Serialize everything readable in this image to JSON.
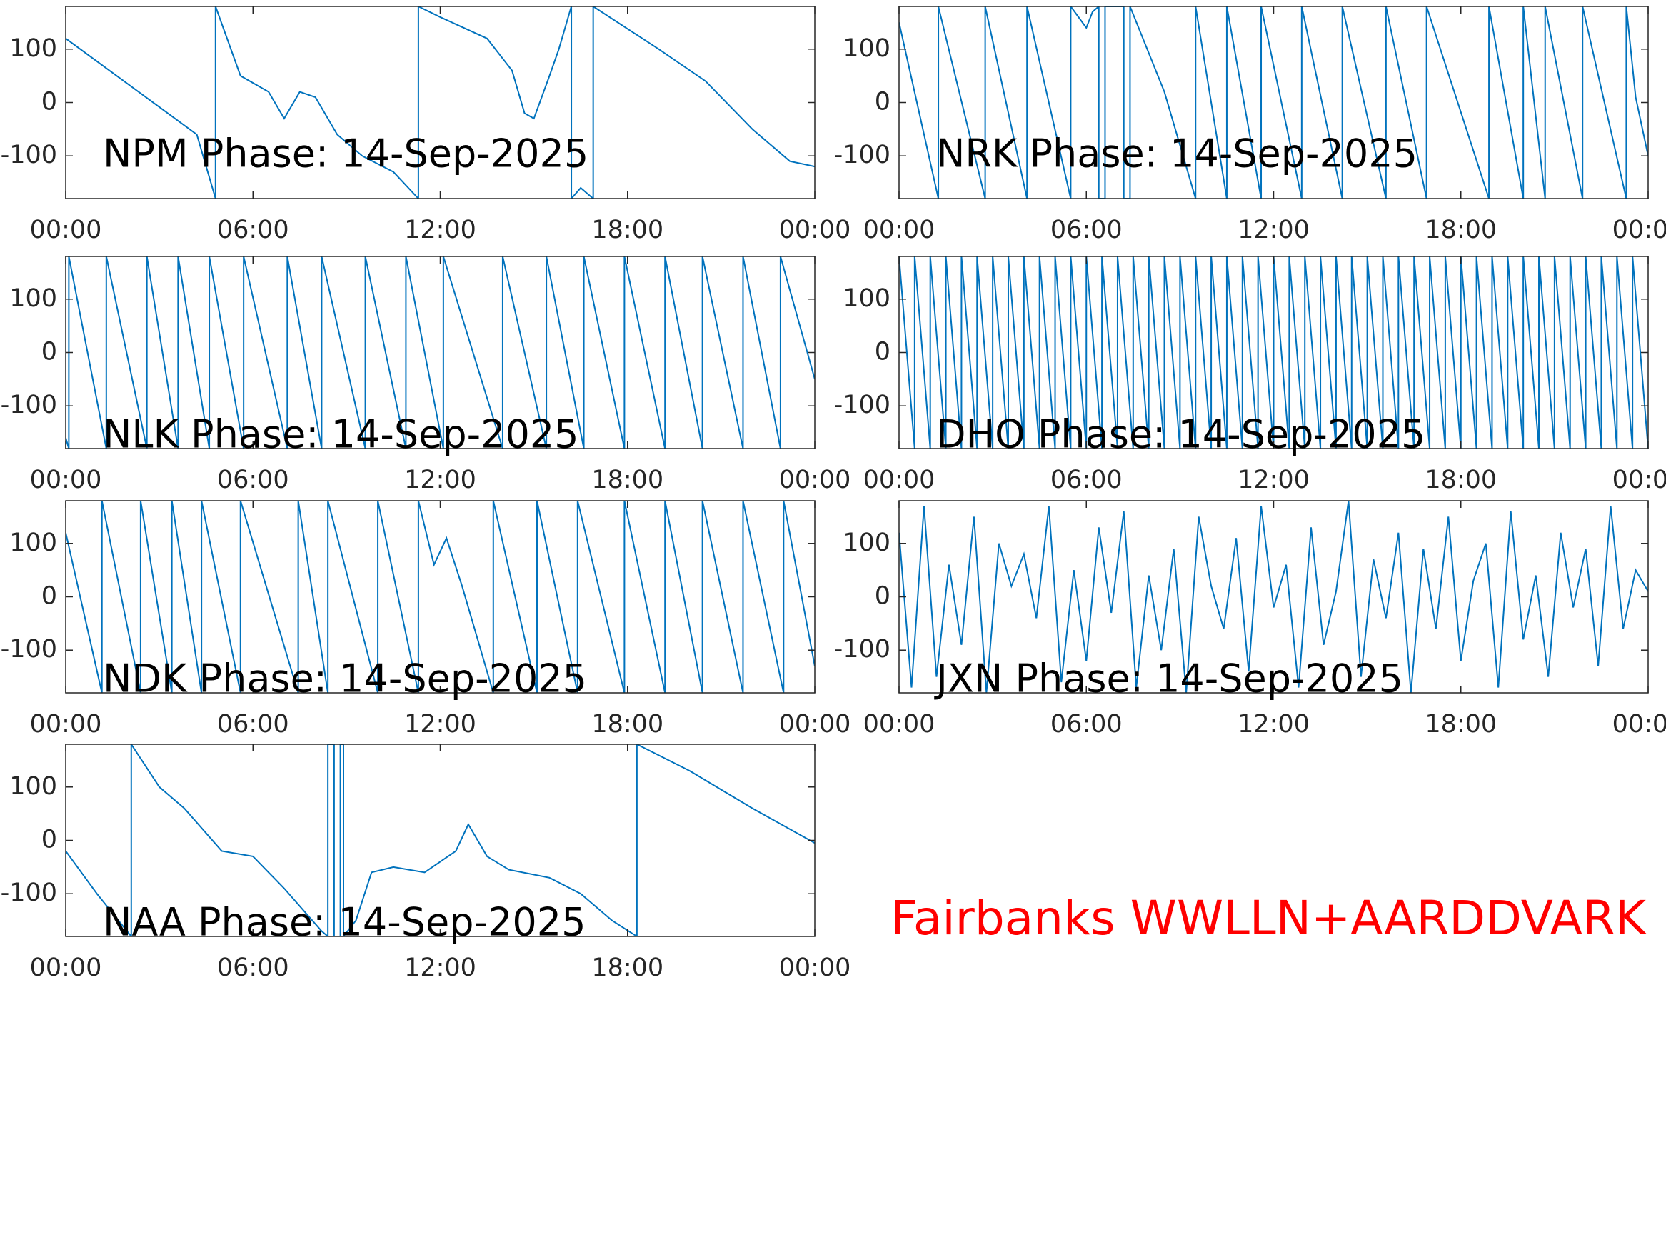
{
  "chart_data": [
    {
      "type": "line",
      "title": "NPM Phase: 14-Sep-2025",
      "color": "#0072bd",
      "x": [
        0,
        4.2,
        4.8,
        4.8,
        5.6,
        6.5,
        7.0,
        7.5,
        8.0,
        8.7,
        9.5,
        10.5,
        11.3,
        11.3,
        12,
        13.5,
        14.3,
        14.7,
        15.0,
        15.5,
        15.8,
        16.2,
        16.2,
        16.5,
        16.9,
        16.9,
        19,
        20.5,
        22,
        23.2,
        24
      ],
      "values": [
        120,
        -60,
        -180,
        180,
        50,
        20,
        -30,
        20,
        10,
        -60,
        -100,
        -130,
        -180,
        180,
        160,
        120,
        60,
        -20,
        -30,
        50,
        100,
        180,
        -180,
        -160,
        -180,
        180,
        100,
        40,
        -50,
        -110,
        -120
      ],
      "xlim": [
        0,
        24
      ],
      "xticks": [
        {
          "value": 0,
          "label": "00:00"
        },
        {
          "value": 6,
          "label": "06:00"
        },
        {
          "value": 12,
          "label": "12:00"
        },
        {
          "value": 18,
          "label": "18:00"
        },
        {
          "value": 24,
          "label": "00:00"
        }
      ],
      "ylim": [
        -180,
        180
      ],
      "yticks": [
        -100,
        0,
        100
      ]
    },
    {
      "type": "line",
      "title": "NRK Phase: 14-Sep-2025",
      "color": "#0072bd",
      "x": [
        0,
        1.26,
        1.26,
        2.76,
        2.76,
        4.1,
        4.1,
        5.5,
        5.5,
        6.0,
        6.2,
        6.4,
        6.4,
        6.6,
        6.6,
        7.2,
        7.2,
        7.4,
        7.4,
        8.5,
        9.5,
        9.5,
        10.5,
        10.5,
        11.6,
        11.6,
        12.9,
        12.9,
        14.2,
        14.2,
        15.6,
        15.6,
        16.9,
        16.9,
        18.9,
        18.9,
        20.0,
        20.0,
        20.7,
        20.7,
        21.9,
        21.9,
        23.3,
        23.3,
        23.6,
        24
      ],
      "values": [
        150,
        -180,
        180,
        -180,
        180,
        -180,
        180,
        -180,
        180,
        140,
        170,
        180,
        -180,
        -180,
        180,
        180,
        -180,
        -180,
        180,
        20,
        -180,
        180,
        -180,
        180,
        -180,
        180,
        -180,
        180,
        -180,
        180,
        -180,
        180,
        -180,
        180,
        -180,
        180,
        -180,
        180,
        -180,
        180,
        -180,
        180,
        -180,
        180,
        10,
        -100
      ],
      "xlim": [
        0,
        24
      ],
      "xticks": [
        {
          "value": 0,
          "label": "00:00"
        },
        {
          "value": 6,
          "label": "06:00"
        },
        {
          "value": 12,
          "label": "12:00"
        },
        {
          "value": 18,
          "label": "18:00"
        },
        {
          "value": 24,
          "label": "00:00"
        }
      ],
      "ylim": [
        -180,
        180
      ],
      "yticks": [
        -100,
        0,
        100
      ]
    },
    {
      "type": "line",
      "title": "NLK Phase: 14-Sep-2025",
      "color": "#0072bd",
      "x": [
        0,
        0.1,
        0.1,
        1.3,
        1.3,
        2.6,
        2.6,
        3.6,
        3.6,
        4.6,
        4.6,
        5.7,
        5.7,
        7.1,
        7.1,
        8.2,
        8.2,
        9.6,
        9.6,
        10.9,
        10.9,
        12.1,
        12.1,
        14.0,
        14.0,
        15.4,
        15.4,
        16.6,
        16.6,
        17.9,
        17.9,
        19.2,
        19.2,
        20.4,
        20.4,
        21.7,
        21.7,
        22.9,
        22.9,
        24
      ],
      "values": [
        -160,
        -180,
        180,
        -180,
        180,
        -180,
        180,
        -180,
        180,
        -180,
        180,
        -180,
        180,
        -180,
        180,
        -180,
        180,
        -180,
        180,
        -180,
        180,
        -180,
        180,
        -180,
        180,
        -180,
        180,
        -180,
        180,
        -180,
        180,
        -180,
        180,
        -180,
        180,
        -180,
        180,
        -180,
        180,
        -50
      ],
      "xlim": [
        0,
        24
      ],
      "xticks": [
        {
          "value": 0,
          "label": "00:00"
        },
        {
          "value": 6,
          "label": "06:00"
        },
        {
          "value": 12,
          "label": "12:00"
        },
        {
          "value": 18,
          "label": "18:00"
        },
        {
          "value": 24,
          "label": "00:00"
        }
      ],
      "ylim": [
        -180,
        180
      ],
      "yticks": [
        -100,
        0,
        100
      ]
    },
    {
      "type": "line",
      "title": "DHO Phase: 14-Sep-2025",
      "color": "#0072bd",
      "x": [
        0,
        0.5,
        0.5,
        1,
        1,
        1.5,
        1.5,
        2,
        2,
        2.5,
        2.5,
        3,
        3,
        3.5,
        3.5,
        4,
        4,
        4.5,
        4.5,
        5,
        5,
        5.5,
        5.5,
        6,
        6,
        6.5,
        6.5,
        7,
        7,
        7.5,
        7.5,
        8,
        8,
        8.5,
        8.5,
        9,
        9,
        9.5,
        9.5,
        10,
        10,
        10.5,
        10.5,
        11,
        11,
        11.5,
        11.5,
        12,
        12,
        12.5,
        12.5,
        13,
        13,
        13.5,
        13.5,
        14,
        14,
        14.5,
        14.5,
        15,
        15,
        15.5,
        15.5,
        16,
        16,
        16.5,
        16.5,
        17,
        17,
        17.5,
        17.5,
        18,
        18,
        18.5,
        18.5,
        19,
        19,
        19.5,
        19.5,
        20,
        20,
        20.5,
        20.5,
        21,
        21,
        21.5,
        21.5,
        22,
        22,
        22.5,
        22.5,
        23,
        23,
        23.5,
        23.5,
        24
      ],
      "values": [
        180,
        -180,
        180,
        -180,
        180,
        -180,
        180,
        -180,
        180,
        -180,
        180,
        -180,
        180,
        -180,
        180,
        -180,
        180,
        -180,
        180,
        -180,
        180,
        -180,
        180,
        -180,
        180,
        -180,
        180,
        -180,
        180,
        -180,
        180,
        -180,
        180,
        -180,
        180,
        -180,
        180,
        -180,
        180,
        -180,
        180,
        -180,
        180,
        -180,
        180,
        -180,
        180,
        -180,
        180,
        -180,
        180,
        -180,
        180,
        -180,
        180,
        -180,
        180,
        -180,
        180,
        -180,
        180,
        -180,
        180,
        -180,
        180,
        -180,
        180,
        -180,
        180,
        -180,
        180,
        -180,
        180,
        -180,
        180,
        -180,
        180,
        -180,
        180,
        -180,
        180,
        -180,
        180,
        -180,
        180,
        -180,
        180,
        -180,
        180,
        -180,
        180,
        -180,
        180,
        -180,
        180,
        -180
      ],
      "xlim": [
        0,
        24
      ],
      "xticks": [
        {
          "value": 0,
          "label": "00:00"
        },
        {
          "value": 6,
          "label": "06:00"
        },
        {
          "value": 12,
          "label": "12:00"
        },
        {
          "value": 18,
          "label": "18:00"
        },
        {
          "value": 24,
          "label": "00:00"
        }
      ],
      "ylim": [
        -180,
        180
      ],
      "yticks": [
        -100,
        0,
        100
      ]
    },
    {
      "type": "line",
      "title": "NDK Phase: 14-Sep-2025",
      "color": "#0072bd",
      "x": [
        0,
        1.16,
        1.16,
        2.4,
        2.4,
        3.4,
        3.4,
        4.35,
        4.35,
        5.6,
        5.6,
        7.45,
        7.45,
        8.4,
        8.4,
        10.0,
        10.0,
        11.3,
        11.3,
        11.8,
        12.2,
        12.7,
        13.7,
        13.7,
        15.1,
        15.1,
        16.4,
        16.4,
        17.9,
        17.9,
        19.2,
        19.2,
        20.4,
        20.4,
        21.7,
        21.7,
        23.0,
        23.0,
        24
      ],
      "values": [
        120,
        -180,
        180,
        -180,
        180,
        -180,
        180,
        -180,
        180,
        -180,
        180,
        -180,
        180,
        -180,
        180,
        -180,
        180,
        -180,
        180,
        60,
        110,
        20,
        -180,
        180,
        -180,
        180,
        -180,
        180,
        -180,
        180,
        -180,
        180,
        -180,
        180,
        -180,
        180,
        -180,
        180,
        -130
      ],
      "xlim": [
        0,
        24
      ],
      "xticks": [
        {
          "value": 0,
          "label": "00:00"
        },
        {
          "value": 6,
          "label": "06:00"
        },
        {
          "value": 12,
          "label": "12:00"
        },
        {
          "value": 18,
          "label": "18:00"
        },
        {
          "value": 24,
          "label": "00:00"
        }
      ],
      "ylim": [
        -180,
        180
      ],
      "yticks": [
        -100,
        0,
        100
      ]
    },
    {
      "type": "line",
      "title": "JXN Phase: 14-Sep-2025",
      "color": "#0072bd",
      "x": [
        0,
        0.4,
        0.8,
        1.2,
        1.6,
        2,
        2.4,
        2.8,
        3.2,
        3.6,
        4,
        4.4,
        4.8,
        5.2,
        5.6,
        6,
        6.4,
        6.8,
        7.2,
        7.6,
        8,
        8.4,
        8.8,
        9.2,
        9.6,
        10,
        10.4,
        10.8,
        11.2,
        11.6,
        12,
        12.4,
        12.8,
        13.2,
        13.6,
        14,
        14.4,
        14.8,
        15.2,
        15.6,
        16,
        16.4,
        16.8,
        17.2,
        17.6,
        18,
        18.4,
        18.8,
        19.2,
        19.6,
        20,
        20.4,
        20.8,
        21.2,
        21.6,
        22,
        22.4,
        22.8,
        23.2,
        23.6,
        24
      ],
      "values": [
        120,
        -170,
        170,
        -150,
        60,
        -90,
        150,
        -180,
        100,
        20,
        80,
        -40,
        170,
        -160,
        50,
        -120,
        130,
        -30,
        160,
        -170,
        40,
        -100,
        90,
        -180,
        150,
        20,
        -60,
        110,
        -140,
        170,
        -20,
        60,
        -170,
        130,
        -90,
        10,
        180,
        -150,
        70,
        -40,
        120,
        -180,
        90,
        -60,
        150,
        -120,
        30,
        100,
        -170,
        160,
        -80,
        40,
        -150,
        120,
        -20,
        90,
        -130,
        170,
        -60,
        50,
        10
      ],
      "xlim": [
        0,
        24
      ],
      "xticks": [
        {
          "value": 0,
          "label": "00:00"
        },
        {
          "value": 6,
          "label": "06:00"
        },
        {
          "value": 12,
          "label": "12:00"
        },
        {
          "value": 18,
          "label": "18:00"
        },
        {
          "value": 24,
          "label": "00:00"
        }
      ],
      "ylim": [
        -180,
        180
      ],
      "yticks": [
        -100,
        0,
        100
      ]
    },
    {
      "type": "line",
      "title": "NAA Phase: 14-Sep-2025",
      "color": "#0072bd",
      "x": [
        0,
        1,
        2.1,
        2.1,
        3,
        3.8,
        5,
        6,
        7,
        8.2,
        8.4,
        8.4,
        8.6,
        8.6,
        8.8,
        8.8,
        8.9,
        8.9,
        9.3,
        9.8,
        10.5,
        11.5,
        12.5,
        12.9,
        13.5,
        14.2,
        15.5,
        16.5,
        17.5,
        18.3,
        18.3,
        20,
        22,
        24
      ],
      "values": [
        -20,
        -100,
        -180,
        180,
        100,
        60,
        -20,
        -30,
        -90,
        -170,
        -180,
        180,
        180,
        -180,
        -180,
        180,
        180,
        -180,
        -150,
        -60,
        -50,
        -60,
        -20,
        30,
        -30,
        -55,
        -70,
        -100,
        -150,
        -180,
        180,
        130,
        60,
        -5
      ],
      "xlim": [
        0,
        24
      ],
      "xticks": [
        {
          "value": 0,
          "label": "00:00"
        },
        {
          "value": 6,
          "label": "06:00"
        },
        {
          "value": 12,
          "label": "12:00"
        },
        {
          "value": 18,
          "label": "18:00"
        },
        {
          "value": 24,
          "label": "00:00"
        }
      ],
      "ylim": [
        -180,
        180
      ],
      "yticks": [
        -100,
        0,
        100
      ]
    }
  ],
  "annotation": "Fairbanks WWLLN+AARDDVARK"
}
